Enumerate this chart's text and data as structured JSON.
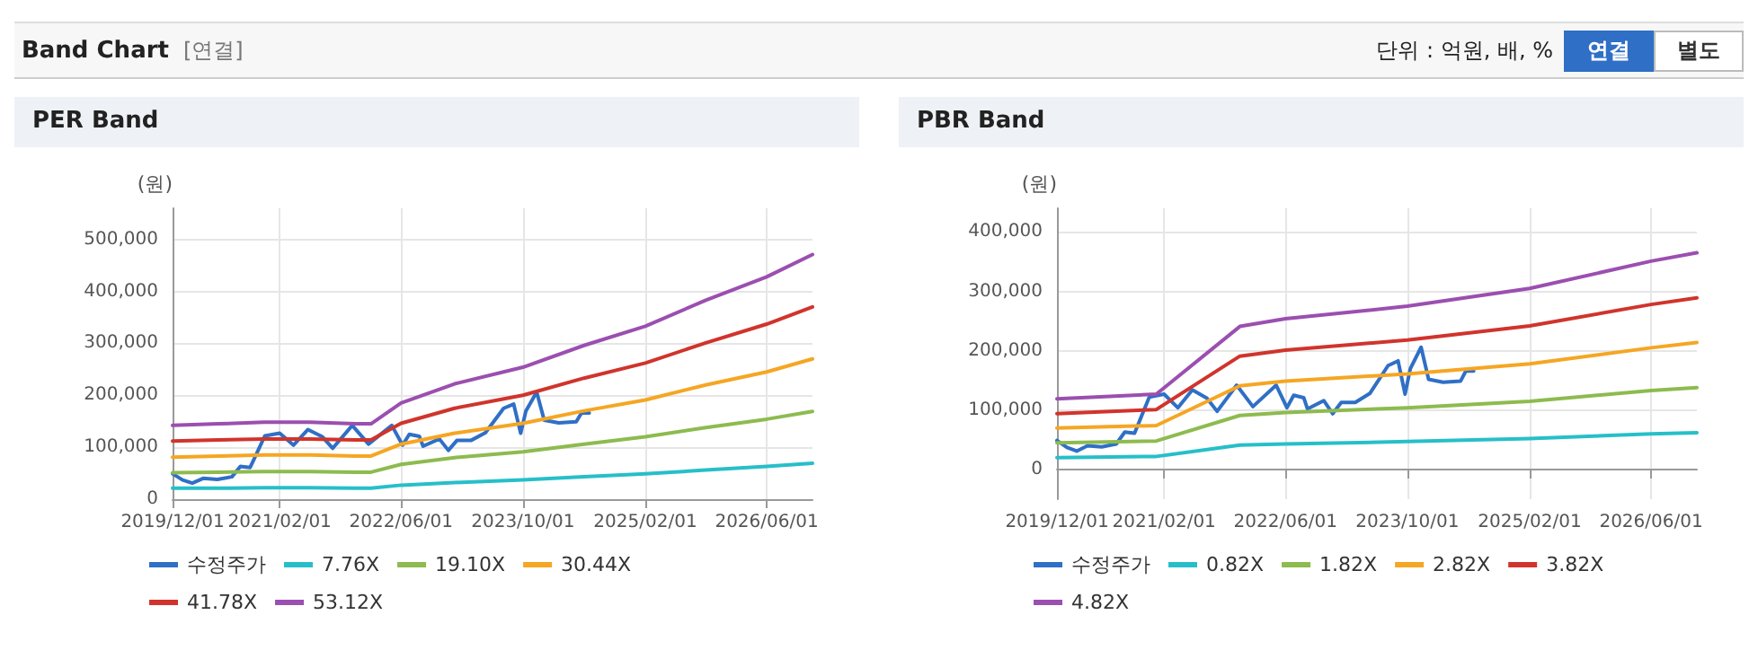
{
  "chart_data": [
    {
      "type": "line",
      "title": "PER Band",
      "ylabel": "(원)",
      "annotations": [
        "Band Chart",
        "[연결]",
        "단위 : 억원, 배, %",
        "연결",
        "별도"
      ],
      "xlim": [
        "2019-12-01",
        "2026-12-01"
      ],
      "xticks": [
        {
          "value": "2019-12-01",
          "label": "2019/12/01"
        },
        {
          "value": "2021-02-01",
          "label": "2021/02/01"
        },
        {
          "value": "2022-06-01",
          "label": "2022/06/01"
        },
        {
          "value": "2023-10-01",
          "label": "2023/10/01"
        },
        {
          "value": "2025-02-01",
          "label": "2025/02/01"
        },
        {
          "value": "2026-06-01",
          "label": "2026/06/01"
        }
      ],
      "ylim": [
        0,
        560000
      ],
      "yticks": [
        {
          "value": 0,
          "label": "0"
        },
        {
          "value": 100000,
          "label": "100,000"
        },
        {
          "value": 200000,
          "label": "200,000"
        },
        {
          "value": 300000,
          "label": "300,000"
        },
        {
          "value": 400000,
          "label": "400,000"
        },
        {
          "value": 500000,
          "label": "500,000"
        }
      ],
      "grid": true,
      "legend": "bottom",
      "marker": "none",
      "line_style": "solid",
      "series": [
        {
          "name": "수정주가",
          "color": "#2f6fc6",
          "x": [
            "2019-12-01",
            "2020-01-10",
            "2020-02-18",
            "2020-04-01",
            "2020-05-28",
            "2020-07-25",
            "2020-08-28",
            "2020-10-06",
            "2020-12-04",
            "2021-02-01",
            "2021-03-28",
            "2021-05-25",
            "2021-07-22",
            "2021-09-01",
            "2021-11-18",
            "2022-01-22",
            "2022-04-25",
            "2022-06-07",
            "2022-07-04",
            "2022-08-13",
            "2022-08-28",
            "2022-11-01",
            "2022-12-07",
            "2023-01-10",
            "2023-03-07",
            "2023-05-04",
            "2023-07-16",
            "2023-08-25",
            "2023-09-22",
            "2023-10-13",
            "2023-11-25",
            "2023-12-25",
            "2024-02-21",
            "2024-05-01",
            "2024-05-22",
            "2024-06-22"
          ],
          "values": [
            49000,
            37000,
            31000,
            40000,
            38000,
            43000,
            63000,
            61000,
            122000,
            127000,
            104000,
            134000,
            120000,
            98000,
            142000,
            106000,
            142000,
            104000,
            125000,
            121000,
            102000,
            116000,
            94000,
            113000,
            113000,
            128000,
            175000,
            183000,
            127000,
            170000,
            206000,
            152000,
            147000,
            149000,
            166000,
            166000
          ]
        },
        {
          "name": "7.76X",
          "color": "#26bfc9",
          "x": [
            "2019-12-01",
            "2020-06-01",
            "2020-12-01",
            "2021-06-01",
            "2021-12-01",
            "2022-02-01",
            "2022-06-01",
            "2023-01-01",
            "2023-10-01",
            "2024-06-01",
            "2025-02-01",
            "2025-10-01",
            "2026-06-01",
            "2026-12-01"
          ],
          "values": [
            21000,
            21000,
            22000,
            22000,
            21000,
            21000,
            27000,
            32000,
            37000,
            43000,
            49000,
            56000,
            63000,
            69000
          ]
        },
        {
          "name": "19.10X",
          "color": "#8dbb4f",
          "x": [
            "2019-12-01",
            "2020-06-01",
            "2020-12-01",
            "2021-06-01",
            "2021-12-01",
            "2022-02-01",
            "2022-06-01",
            "2023-01-01",
            "2023-10-01",
            "2024-06-01",
            "2025-02-01",
            "2025-10-01",
            "2026-06-01",
            "2026-12-01"
          ],
          "values": [
            51000,
            52000,
            53000,
            53000,
            52000,
            52000,
            67000,
            80000,
            91000,
            106000,
            120000,
            138000,
            154000,
            169000
          ]
        },
        {
          "name": "30.44X",
          "color": "#f5a623",
          "x": [
            "2019-12-01",
            "2020-06-01",
            "2020-12-01",
            "2021-06-01",
            "2021-12-01",
            "2022-02-01",
            "2022-06-01",
            "2023-01-01",
            "2023-10-01",
            "2024-06-01",
            "2025-02-01",
            "2025-10-01",
            "2026-06-01",
            "2026-12-01"
          ],
          "values": [
            81000,
            83000,
            85000,
            85000,
            83000,
            83000,
            106000,
            127000,
            146000,
            170000,
            191000,
            220000,
            245000,
            270000
          ]
        },
        {
          "name": "41.78X",
          "color": "#d0342c",
          "x": [
            "2019-12-01",
            "2020-06-01",
            "2020-12-01",
            "2021-06-01",
            "2021-12-01",
            "2022-02-01",
            "2022-06-01",
            "2023-01-01",
            "2023-10-01",
            "2024-06-01",
            "2025-02-01",
            "2025-10-01",
            "2026-06-01",
            "2026-12-01"
          ],
          "values": [
            112000,
            114000,
            116000,
            116000,
            114000,
            114000,
            146000,
            175000,
            200000,
            233000,
            262000,
            301000,
            337000,
            370000
          ]
        },
        {
          "name": "53.12X",
          "color": "#9b4fb0",
          "x": [
            "2019-12-01",
            "2020-06-01",
            "2020-12-01",
            "2021-06-01",
            "2021-12-01",
            "2022-02-01",
            "2022-06-01",
            "2023-01-01",
            "2023-10-01",
            "2024-06-01",
            "2025-02-01",
            "2025-10-01",
            "2026-06-01",
            "2026-12-01"
          ],
          "values": [
            142000,
            145000,
            148000,
            148000,
            145000,
            145000,
            185000,
            222000,
            254000,
            296000,
            333000,
            383000,
            428000,
            471000
          ]
        }
      ]
    },
    {
      "type": "line",
      "title": "PBR Band",
      "ylabel": "(원)",
      "xlim": [
        "2019-12-01",
        "2026-12-01"
      ],
      "xticks": [
        {
          "value": "2019-12-01",
          "label": "2019/12/01"
        },
        {
          "value": "2021-02-01",
          "label": "2021/02/01"
        },
        {
          "value": "2022-06-01",
          "label": "2022/06/01"
        },
        {
          "value": "2023-10-01",
          "label": "2023/10/01"
        },
        {
          "value": "2025-02-01",
          "label": "2025/02/01"
        },
        {
          "value": "2026-06-01",
          "label": "2026/06/01"
        }
      ],
      "ylim": [
        -50000,
        440000
      ],
      "yticks": [
        {
          "value": 0,
          "label": "0"
        },
        {
          "value": 100000,
          "label": "100,000"
        },
        {
          "value": 200000,
          "label": "200,000"
        },
        {
          "value": 300000,
          "label": "300,000"
        },
        {
          "value": 400000,
          "label": "400,000"
        }
      ],
      "grid": true,
      "legend": "bottom",
      "marker": "none",
      "line_style": "solid",
      "series": [
        {
          "name": "수정주가",
          "color": "#2f6fc6",
          "x": [
            "2019-12-01",
            "2020-01-10",
            "2020-02-18",
            "2020-04-01",
            "2020-05-28",
            "2020-07-25",
            "2020-08-28",
            "2020-10-06",
            "2020-12-04",
            "2021-02-01",
            "2021-03-28",
            "2021-05-25",
            "2021-07-22",
            "2021-09-01",
            "2021-11-18",
            "2022-01-22",
            "2022-04-25",
            "2022-06-07",
            "2022-07-04",
            "2022-08-13",
            "2022-08-28",
            "2022-11-01",
            "2022-12-07",
            "2023-01-10",
            "2023-03-07",
            "2023-05-04",
            "2023-07-16",
            "2023-08-25",
            "2023-09-22",
            "2023-10-13",
            "2023-11-25",
            "2023-12-25",
            "2024-02-21",
            "2024-05-01",
            "2024-05-22",
            "2024-06-22"
          ],
          "values": [
            49000,
            37000,
            31000,
            40000,
            38000,
            43000,
            63000,
            61000,
            122000,
            127000,
            104000,
            134000,
            120000,
            98000,
            142000,
            106000,
            142000,
            104000,
            125000,
            121000,
            102000,
            116000,
            94000,
            113000,
            113000,
            128000,
            175000,
            183000,
            127000,
            170000,
            206000,
            152000,
            147000,
            149000,
            166000,
            166000
          ]
        },
        {
          "name": "0.82X",
          "color": "#26bfc9",
          "x": [
            "2019-12-01",
            "2021-01-01",
            "2021-12-01",
            "2022-06-01",
            "2023-10-01",
            "2025-02-01",
            "2026-06-01",
            "2026-12-01"
          ],
          "values": [
            20000,
            22000,
            41000,
            43000,
            47000,
            52000,
            60000,
            62000
          ]
        },
        {
          "name": "1.82X",
          "color": "#8dbb4f",
          "x": [
            "2019-12-01",
            "2021-01-01",
            "2021-12-01",
            "2022-06-01",
            "2023-10-01",
            "2025-02-01",
            "2026-06-01",
            "2026-12-01"
          ],
          "values": [
            45000,
            48000,
            91000,
            96000,
            104000,
            115000,
            133000,
            138000
          ]
        },
        {
          "name": "2.82X",
          "color": "#f5a623",
          "x": [
            "2019-12-01",
            "2021-01-01",
            "2021-12-01",
            "2022-06-01",
            "2023-10-01",
            "2025-02-01",
            "2026-06-01",
            "2026-12-01"
          ],
          "values": [
            70000,
            74000,
            141000,
            149000,
            161000,
            178000,
            205000,
            214000
          ]
        },
        {
          "name": "3.82X",
          "color": "#d0342c",
          "x": [
            "2019-12-01",
            "2021-01-01",
            "2021-12-01",
            "2022-06-01",
            "2023-10-01",
            "2025-02-01",
            "2026-06-01",
            "2026-12-01"
          ],
          "values": [
            94000,
            101000,
            191000,
            201000,
            218000,
            242000,
            278000,
            289000
          ]
        },
        {
          "name": "4.82X",
          "color": "#9b4fb0",
          "x": [
            "2019-12-01",
            "2021-01-01",
            "2021-12-01",
            "2022-06-01",
            "2023-10-01",
            "2025-02-01",
            "2026-06-01",
            "2026-12-01"
          ],
          "values": [
            119000,
            127000,
            241000,
            254000,
            275000,
            305000,
            351000,
            365000
          ]
        }
      ]
    }
  ]
}
